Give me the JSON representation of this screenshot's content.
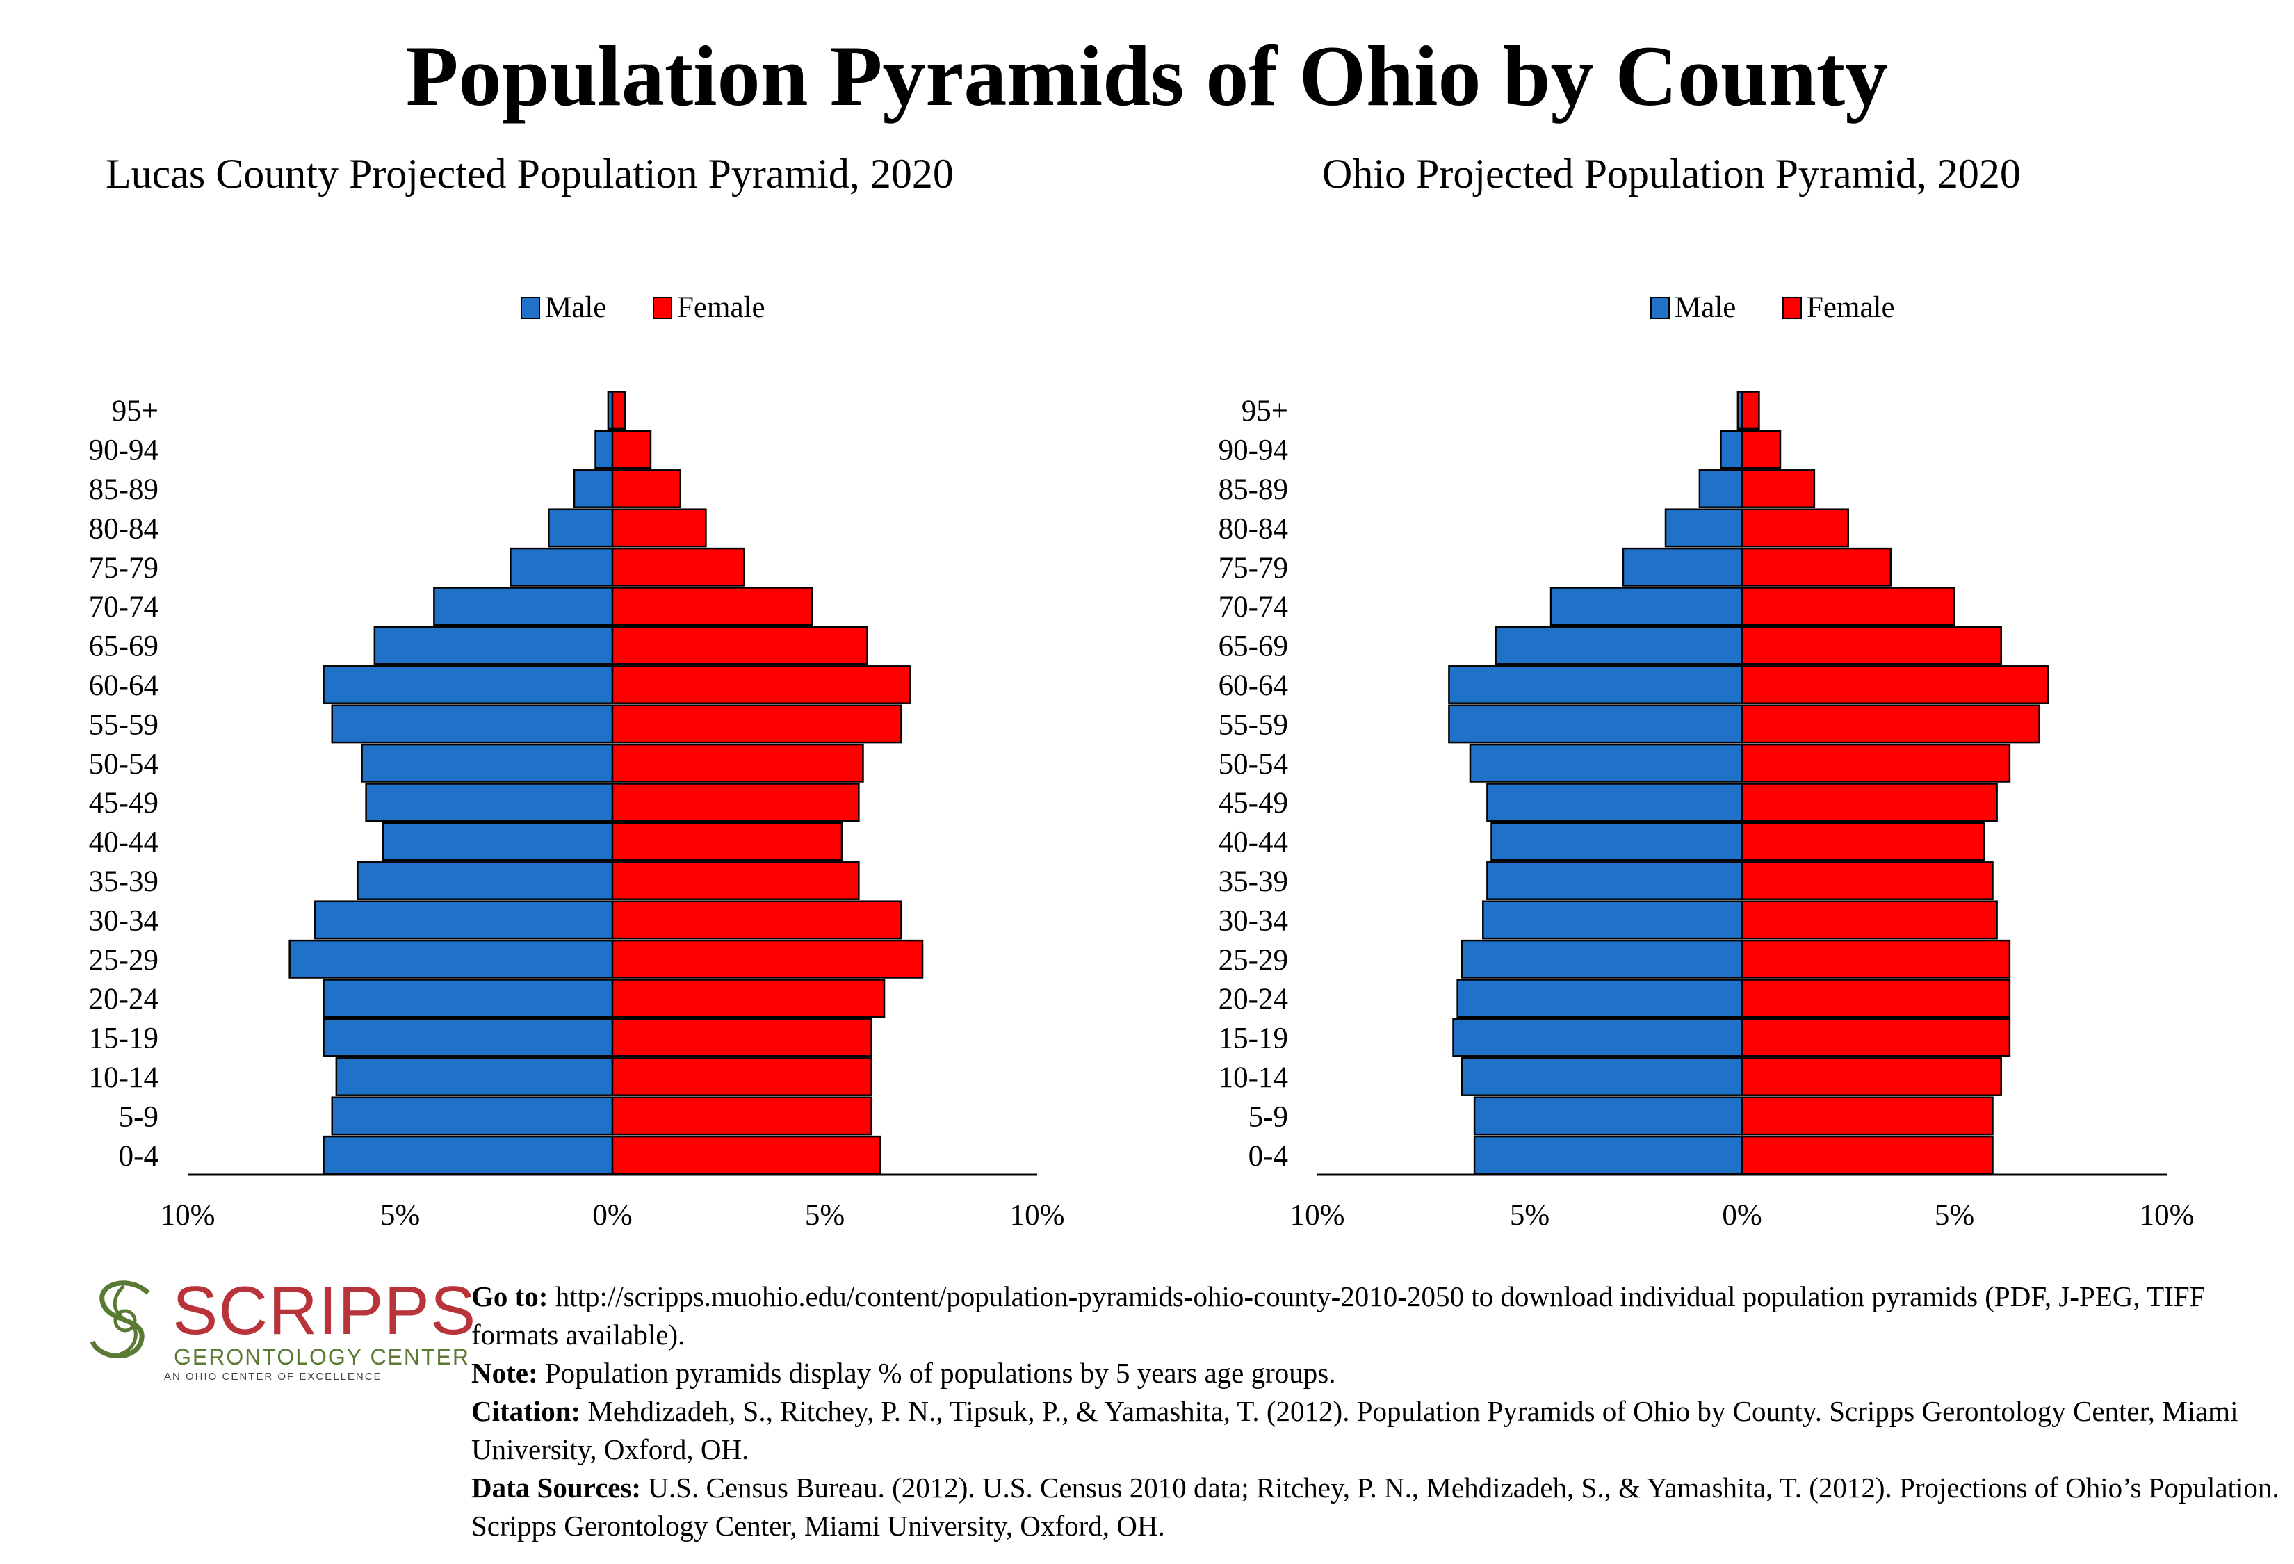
{
  "title": "Population Pyramids of Ohio by County",
  "legend": {
    "male": "Male",
    "female": "Female"
  },
  "colors": {
    "male": "#1f72c7",
    "female": "#ff0000",
    "logo_red": "#b8343a",
    "logo_green": "#5a7a34"
  },
  "chart_data": [
    {
      "type": "bar",
      "orientation": "horizontal-pyramid",
      "title": "Lucas County Projected Population Pyramid, 2020",
      "categories": [
        "95+",
        "90-94",
        "85-89",
        "80-84",
        "75-79",
        "70-74",
        "65-69",
        "60-64",
        "55-59",
        "50-54",
        "45-49",
        "40-44",
        "35-39",
        "30-34",
        "25-29",
        "20-24",
        "15-19",
        "10-14",
        "5-9",
        "0-4"
      ],
      "series": [
        {
          "name": "Male",
          "values": [
            0.1,
            0.4,
            0.9,
            1.5,
            2.4,
            4.2,
            5.6,
            6.8,
            6.6,
            5.9,
            5.8,
            5.4,
            6.0,
            7.0,
            7.6,
            6.8,
            6.8,
            6.5,
            6.6,
            6.8
          ]
        },
        {
          "name": "Female",
          "values": [
            0.3,
            0.9,
            1.6,
            2.2,
            3.1,
            4.7,
            6.0,
            7.0,
            6.8,
            5.9,
            5.8,
            5.4,
            5.8,
            6.8,
            7.3,
            6.4,
            6.1,
            6.1,
            6.1,
            6.3
          ]
        }
      ],
      "xlim": [
        -10,
        10
      ],
      "xticks": [
        "10%",
        "5%",
        "0%",
        "5%",
        "10%"
      ],
      "legend_position": "top-center"
    },
    {
      "type": "bar",
      "orientation": "horizontal-pyramid",
      "title": "Ohio Projected Population Pyramid, 2020",
      "categories": [
        "95+",
        "90-94",
        "85-89",
        "80-84",
        "75-79",
        "70-74",
        "65-69",
        "60-64",
        "55-59",
        "50-54",
        "45-49",
        "40-44",
        "35-39",
        "30-34",
        "25-29",
        "20-24",
        "15-19",
        "10-14",
        "5-9",
        "0-4"
      ],
      "series": [
        {
          "name": "Male",
          "values": [
            0.1,
            0.5,
            1.0,
            1.8,
            2.8,
            4.5,
            5.8,
            6.9,
            6.9,
            6.4,
            6.0,
            5.9,
            6.0,
            6.1,
            6.6,
            6.7,
            6.8,
            6.6,
            6.3,
            6.3
          ]
        },
        {
          "name": "Female",
          "values": [
            0.4,
            0.9,
            1.7,
            2.5,
            3.5,
            5.0,
            6.1,
            7.2,
            7.0,
            6.3,
            6.0,
            5.7,
            5.9,
            6.0,
            6.3,
            6.3,
            6.3,
            6.1,
            5.9,
            5.9
          ]
        }
      ],
      "xlim": [
        -10,
        10
      ],
      "xticks": [
        "10%",
        "5%",
        "0%",
        "5%",
        "10%"
      ],
      "legend_position": "top-center"
    }
  ],
  "logo": {
    "word": "SCRIPPS",
    "sub": "GERONTOLOGY CENTER",
    "tag": "AN OHIO CENTER OF EXCELLENCE"
  },
  "footer": {
    "goto_label": "Go to:",
    "goto_text": " http://scripps.muohio.edu/content/population-pyramids-ohio-county-2010-2050 to download individual population pyramids (PDF, J-PEG, TIFF formats available).",
    "note_label": "Note:",
    "note_text": " Population pyramids display % of populations by 5 years age groups.",
    "citation_label": "Citation:",
    "citation_text": " Mehdizadeh, S., Ritchey, P. N., Tipsuk, P., & Yamashita, T. (2012). Population Pyramids of Ohio by County. Scripps Gerontology Center, Miami University, Oxford, OH.",
    "sources_label": "Data Sources:",
    "sources_text": " U.S. Census Bureau. (2012). U.S. Census 2010 data; Ritchey, P. N., Mehdizadeh, S., & Yamashita, T. (2012). Projections of Ohio’s Population. Scripps Gerontology Center, Miami University, Oxford, OH."
  }
}
